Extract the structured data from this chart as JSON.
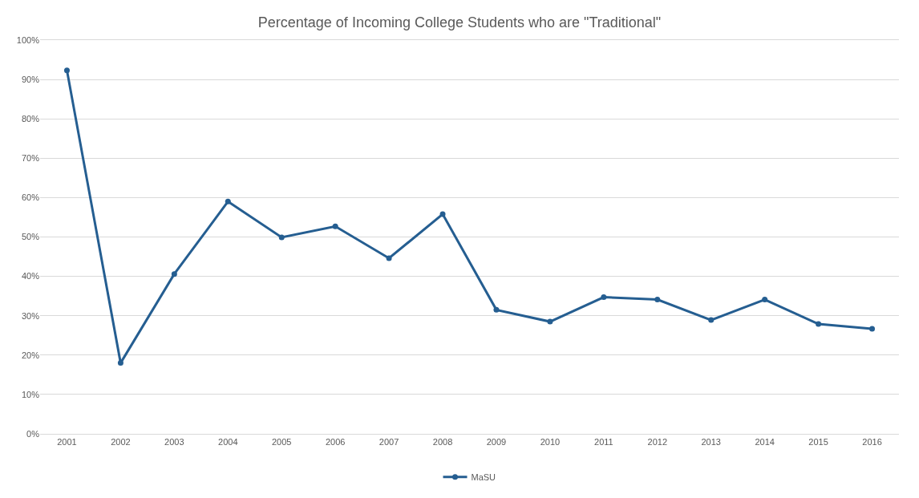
{
  "chart_data": {
    "type": "line",
    "title": "Percentage of Incoming College Students who are \"Traditional\"",
    "categories": [
      "2001",
      "2002",
      "2003",
      "2004",
      "2005",
      "2006",
      "2007",
      "2008",
      "2009",
      "2010",
      "2011",
      "2012",
      "2013",
      "2014",
      "2015",
      "2016"
    ],
    "series": [
      {
        "name": "MaSU",
        "color": "#255e91",
        "values": [
          92.3,
          18.0,
          40.6,
          59.0,
          49.9,
          52.7,
          44.6,
          55.8,
          31.5,
          28.5,
          34.7,
          34.1,
          28.9,
          34.1,
          27.9,
          26.7
        ]
      }
    ],
    "ylim": [
      0,
      100
    ],
    "yticks": [
      {
        "value": 0,
        "label": "0%"
      },
      {
        "value": 10,
        "label": "10%"
      },
      {
        "value": 20,
        "label": "20%"
      },
      {
        "value": 30,
        "label": "30%"
      },
      {
        "value": 40,
        "label": "40%"
      },
      {
        "value": 50,
        "label": "50%"
      },
      {
        "value": 60,
        "label": "60%"
      },
      {
        "value": 70,
        "label": "70%"
      },
      {
        "value": 80,
        "label": "80%"
      },
      {
        "value": 90,
        "label": "90%"
      },
      {
        "value": 100,
        "label": "100%"
      }
    ],
    "grid": "y",
    "legend": "bottom",
    "marker": "circle",
    "line_style": "solid"
  }
}
